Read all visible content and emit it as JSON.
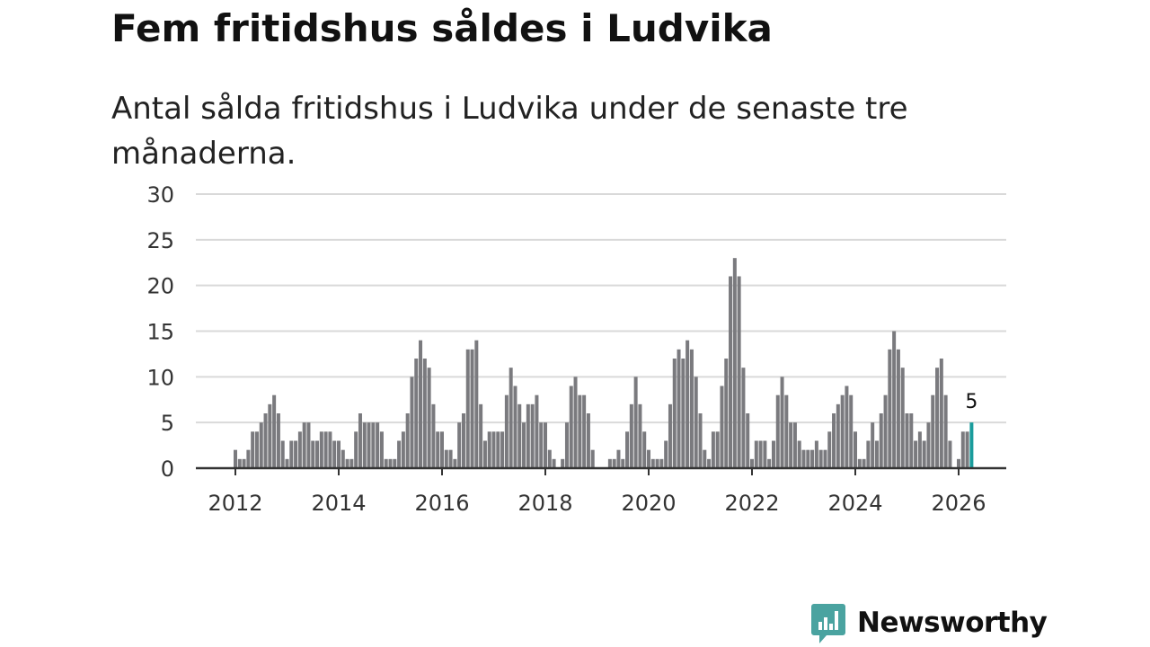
{
  "title": "Fem fritidshus såldes i Ludvika",
  "subtitle": "Antal sålda fritidshus i Ludvika under de senaste tre månaderna.",
  "brand": {
    "name": "Newsworthy",
    "color": "#4aa3a0",
    "icon": "bar-chart-speech-bubble-icon"
  },
  "colors": {
    "bar": "#7a7a7e",
    "highlight": "#1a9c9c",
    "grid": "#d9d9d9",
    "axis": "#333333"
  },
  "chart_data": {
    "type": "bar",
    "title": "Fem fritidshus såldes i Ludvika",
    "subtitle": "Antal sålda fritidshus i Ludvika under de senaste tre månaderna.",
    "xlabel": "",
    "ylabel": "",
    "ylim": [
      0,
      30
    ],
    "yticks": [
      0,
      5,
      10,
      15,
      20,
      25,
      30
    ],
    "xticks": [
      "2012",
      "2014",
      "2016",
      "2018",
      "2020",
      "2022",
      "2024",
      "2026"
    ],
    "grid": true,
    "legend": "none",
    "x_start": "2012-01",
    "x_end": "2026-03",
    "highlight": {
      "x": "2026-03",
      "value": 5,
      "label": "5"
    },
    "values": [
      2,
      1,
      1,
      2,
      4,
      4,
      5,
      6,
      7,
      8,
      6,
      3,
      1,
      3,
      3,
      4,
      5,
      5,
      3,
      3,
      4,
      4,
      4,
      3,
      3,
      2,
      1,
      1,
      4,
      6,
      5,
      5,
      5,
      5,
      4,
      1,
      1,
      1,
      3,
      4,
      6,
      10,
      12,
      14,
      12,
      11,
      7,
      4,
      4,
      2,
      2,
      1,
      5,
      6,
      13,
      13,
      14,
      7,
      3,
      4,
      4,
      4,
      4,
      8,
      11,
      9,
      7,
      5,
      7,
      7,
      8,
      5,
      5,
      2,
      1,
      0,
      1,
      5,
      9,
      10,
      8,
      8,
      6,
      2,
      0,
      0,
      0,
      1,
      1,
      2,
      1,
      4,
      7,
      10,
      7,
      4,
      2,
      1,
      1,
      1,
      3,
      7,
      12,
      13,
      12,
      14,
      13,
      10,
      6,
      2,
      1,
      4,
      4,
      9,
      12,
      21,
      23,
      21,
      11,
      6,
      1,
      3,
      3,
      3,
      1,
      3,
      8,
      10,
      8,
      5,
      5,
      3,
      2,
      2,
      2,
      3,
      2,
      2,
      4,
      6,
      7,
      8,
      9,
      8,
      4,
      1,
      1,
      3,
      5,
      3,
      6,
      8,
      13,
      15,
      13,
      11,
      6,
      6,
      3,
      4,
      3,
      5,
      8,
      11,
      12,
      8,
      3,
      0,
      1,
      4,
      4,
      5
    ]
  }
}
